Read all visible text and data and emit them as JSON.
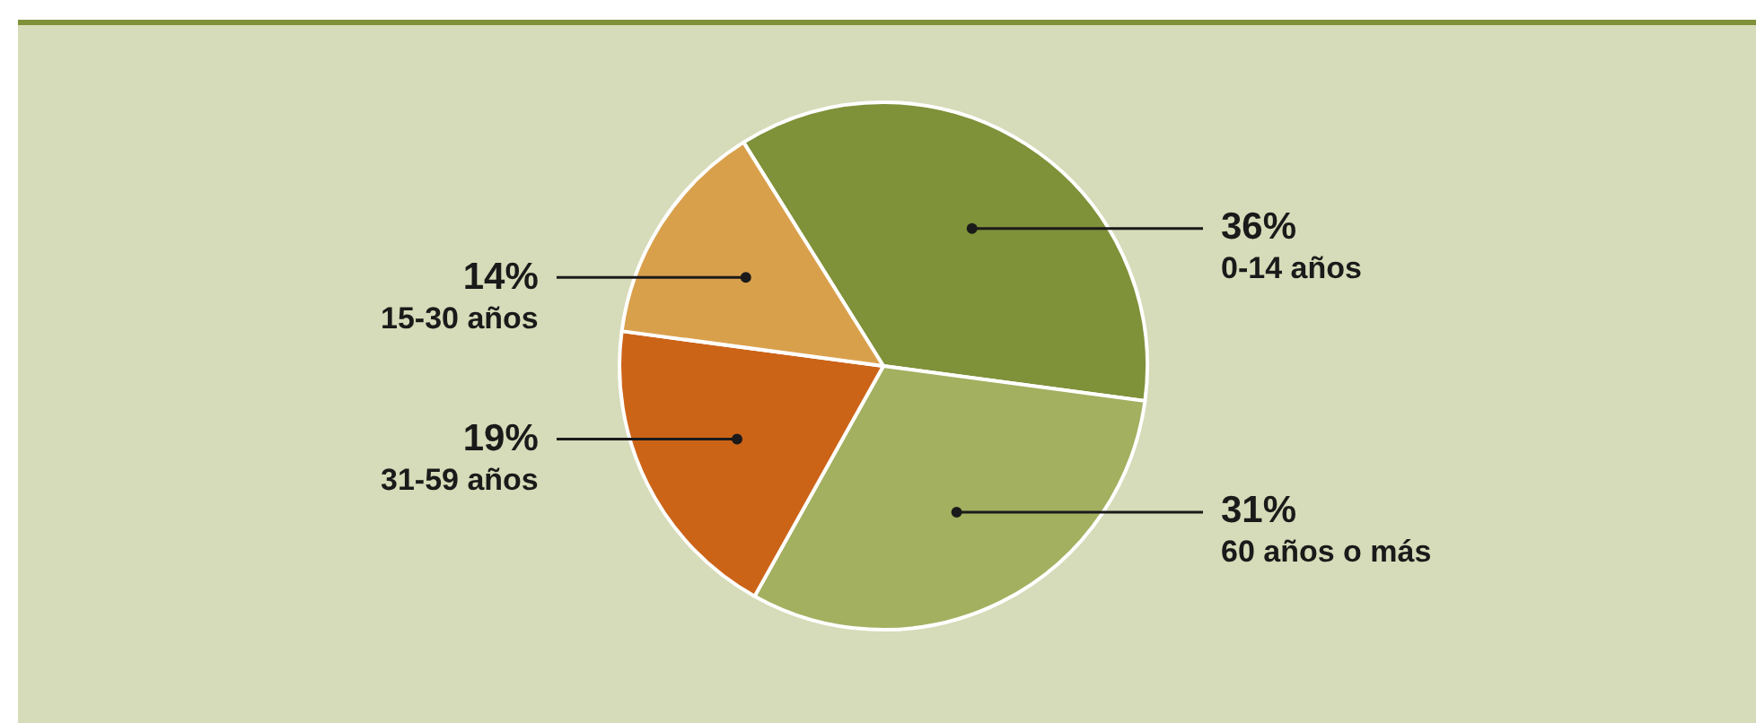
{
  "chart_data": {
    "type": "pie",
    "categories": [
      "0-14 años",
      "60 años o más",
      "31-59 años",
      "15-30 años"
    ],
    "values": [
      36,
      31,
      19,
      14
    ],
    "colors": [
      "#7f9139",
      "#a3b060",
      "#cc6418",
      "#d9a04c"
    ],
    "value_labels": [
      "36%",
      "31%",
      "19%",
      "14%"
    ],
    "legend": false
  }
}
